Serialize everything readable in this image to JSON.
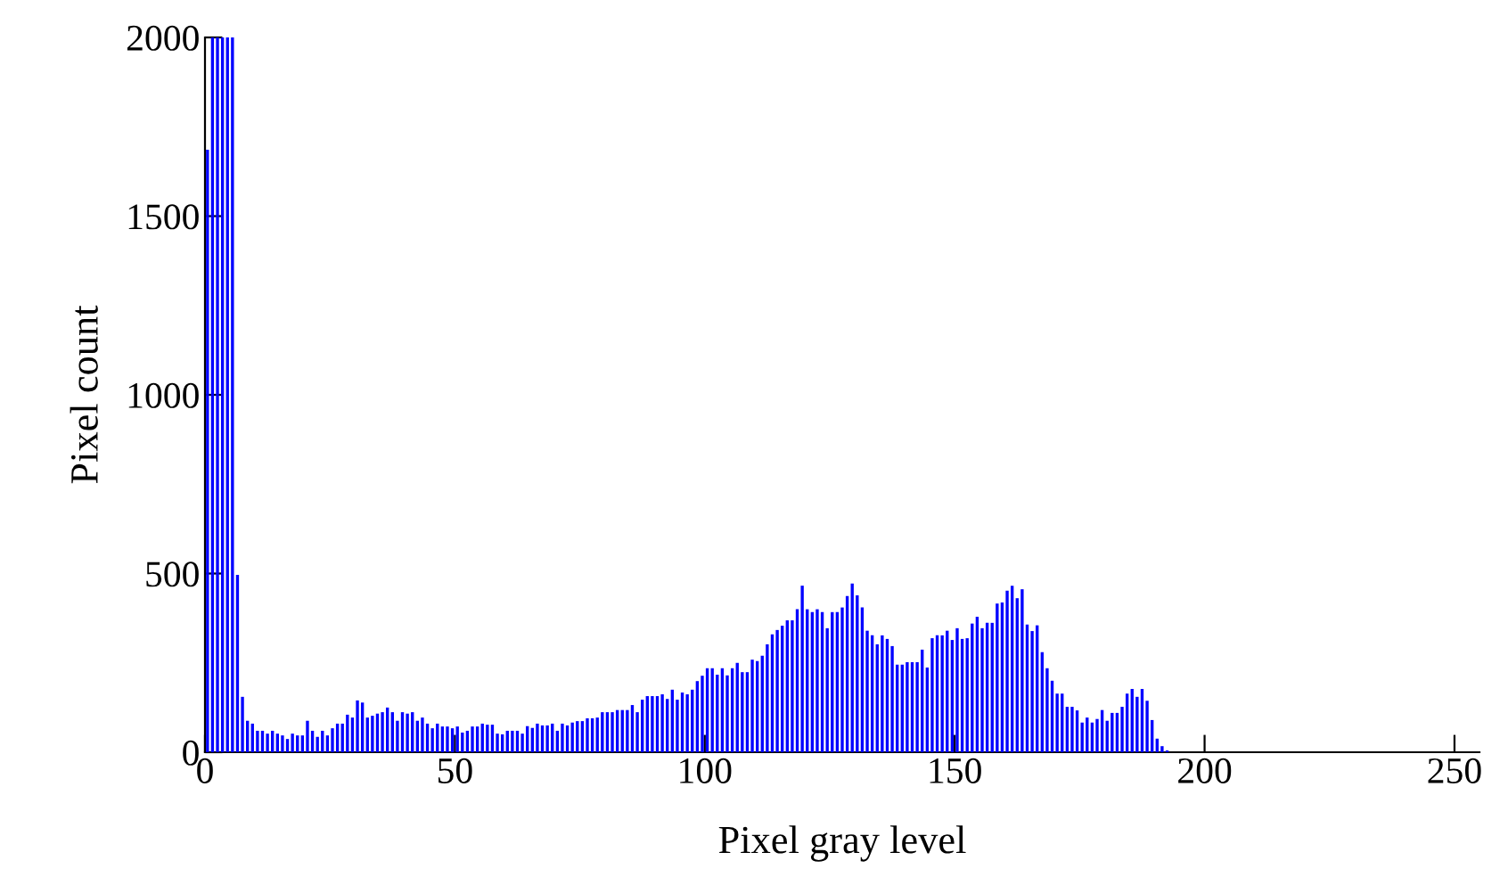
{
  "chart_data": {
    "type": "histogram",
    "xlabel": "Pixel gray level",
    "ylabel": "Pixel count",
    "color": "#0000ff",
    "bins": [
      0,
      1,
      2,
      3,
      4,
      5,
      6,
      7,
      8,
      9,
      10,
      11,
      12,
      13,
      14,
      15,
      16,
      17,
      18,
      19,
      20,
      21,
      22,
      23,
      24,
      25,
      26,
      27,
      28,
      29,
      30,
      31,
      32,
      33,
      34,
      35,
      36,
      37,
      38,
      39,
      40,
      41,
      42,
      43,
      44,
      45,
      46,
      47,
      48,
      49,
      50,
      51,
      52,
      53,
      54,
      55,
      56,
      57,
      58,
      59,
      60,
      61,
      62,
      63,
      64,
      65,
      66,
      67,
      68,
      69,
      70,
      71,
      72,
      73,
      74,
      75,
      76,
      77,
      78,
      79,
      80,
      81,
      82,
      83,
      84,
      85,
      86,
      87,
      88,
      89,
      90,
      91,
      92,
      93,
      94,
      95,
      96,
      97,
      98,
      99,
      100,
      101,
      102,
      103,
      104,
      105,
      106,
      107,
      108,
      109,
      110,
      111,
      112,
      113,
      114,
      115,
      116,
      117,
      118,
      119,
      120,
      121,
      122,
      123,
      124,
      125,
      126,
      127,
      128,
      129,
      130,
      131,
      132,
      133,
      134,
      135,
      136,
      137,
      138,
      139,
      140,
      141,
      142,
      143,
      144,
      145,
      146,
      147,
      148,
      149,
      150,
      151,
      152,
      153,
      154,
      155,
      156,
      157,
      158,
      159,
      160,
      161,
      162,
      163,
      164,
      165,
      166,
      167,
      168,
      169,
      170,
      171,
      172,
      173,
      174,
      175,
      176,
      177,
      178,
      179,
      180,
      181,
      182,
      183,
      184,
      185,
      186,
      187,
      188,
      189,
      190,
      191,
      192,
      193
    ],
    "values": [
      1686,
      2000,
      2000,
      2000,
      2000,
      2000,
      496,
      155,
      88,
      80,
      60,
      60,
      52,
      60,
      52,
      47,
      37,
      52,
      47,
      47,
      88,
      60,
      43,
      60,
      47,
      67,
      80,
      80,
      105,
      97,
      145,
      139,
      97,
      102,
      108,
      112,
      125,
      112,
      88,
      112,
      108,
      112,
      88,
      97,
      80,
      67,
      80,
      72,
      72,
      67,
      72,
      55,
      60,
      72,
      72,
      80,
      77,
      77,
      52,
      50,
      60,
      60,
      60,
      52,
      73,
      68,
      80,
      75,
      75,
      80,
      60,
      80,
      75,
      83,
      87,
      87,
      95,
      95,
      97,
      112,
      112,
      112,
      118,
      118,
      118,
      132,
      112,
      147,
      157,
      157,
      157,
      162,
      149,
      175,
      147,
      167,
      162,
      175,
      199,
      214,
      235,
      235,
      217,
      235,
      215,
      235,
      250,
      224,
      224,
      259,
      255,
      270,
      302,
      330,
      342,
      354,
      369,
      369,
      400,
      466,
      400,
      392,
      400,
      392,
      347,
      392,
      392,
      405,
      437,
      472,
      439,
      405,
      340,
      327,
      302,
      327,
      317,
      297,
      245,
      245,
      252,
      252,
      252,
      287,
      237,
      319,
      327,
      327,
      340,
      314,
      347,
      317,
      319,
      360,
      379,
      347,
      362,
      362,
      416,
      419,
      452,
      466,
      431,
      456,
      357,
      339,
      355,
      280,
      235,
      200,
      164,
      164,
      127,
      127,
      117,
      83,
      97,
      83,
      93,
      118,
      88,
      110,
      110,
      127,
      164,
      177,
      155,
      177,
      144,
      90,
      38,
      17,
      5
    ],
    "xlim": [
      0,
      255
    ],
    "ylim": [
      0,
      2000
    ],
    "xticks": [
      0,
      50,
      100,
      150,
      200,
      250
    ],
    "yticks": [
      0,
      500,
      1000,
      1500,
      2000
    ],
    "grid": false
  }
}
